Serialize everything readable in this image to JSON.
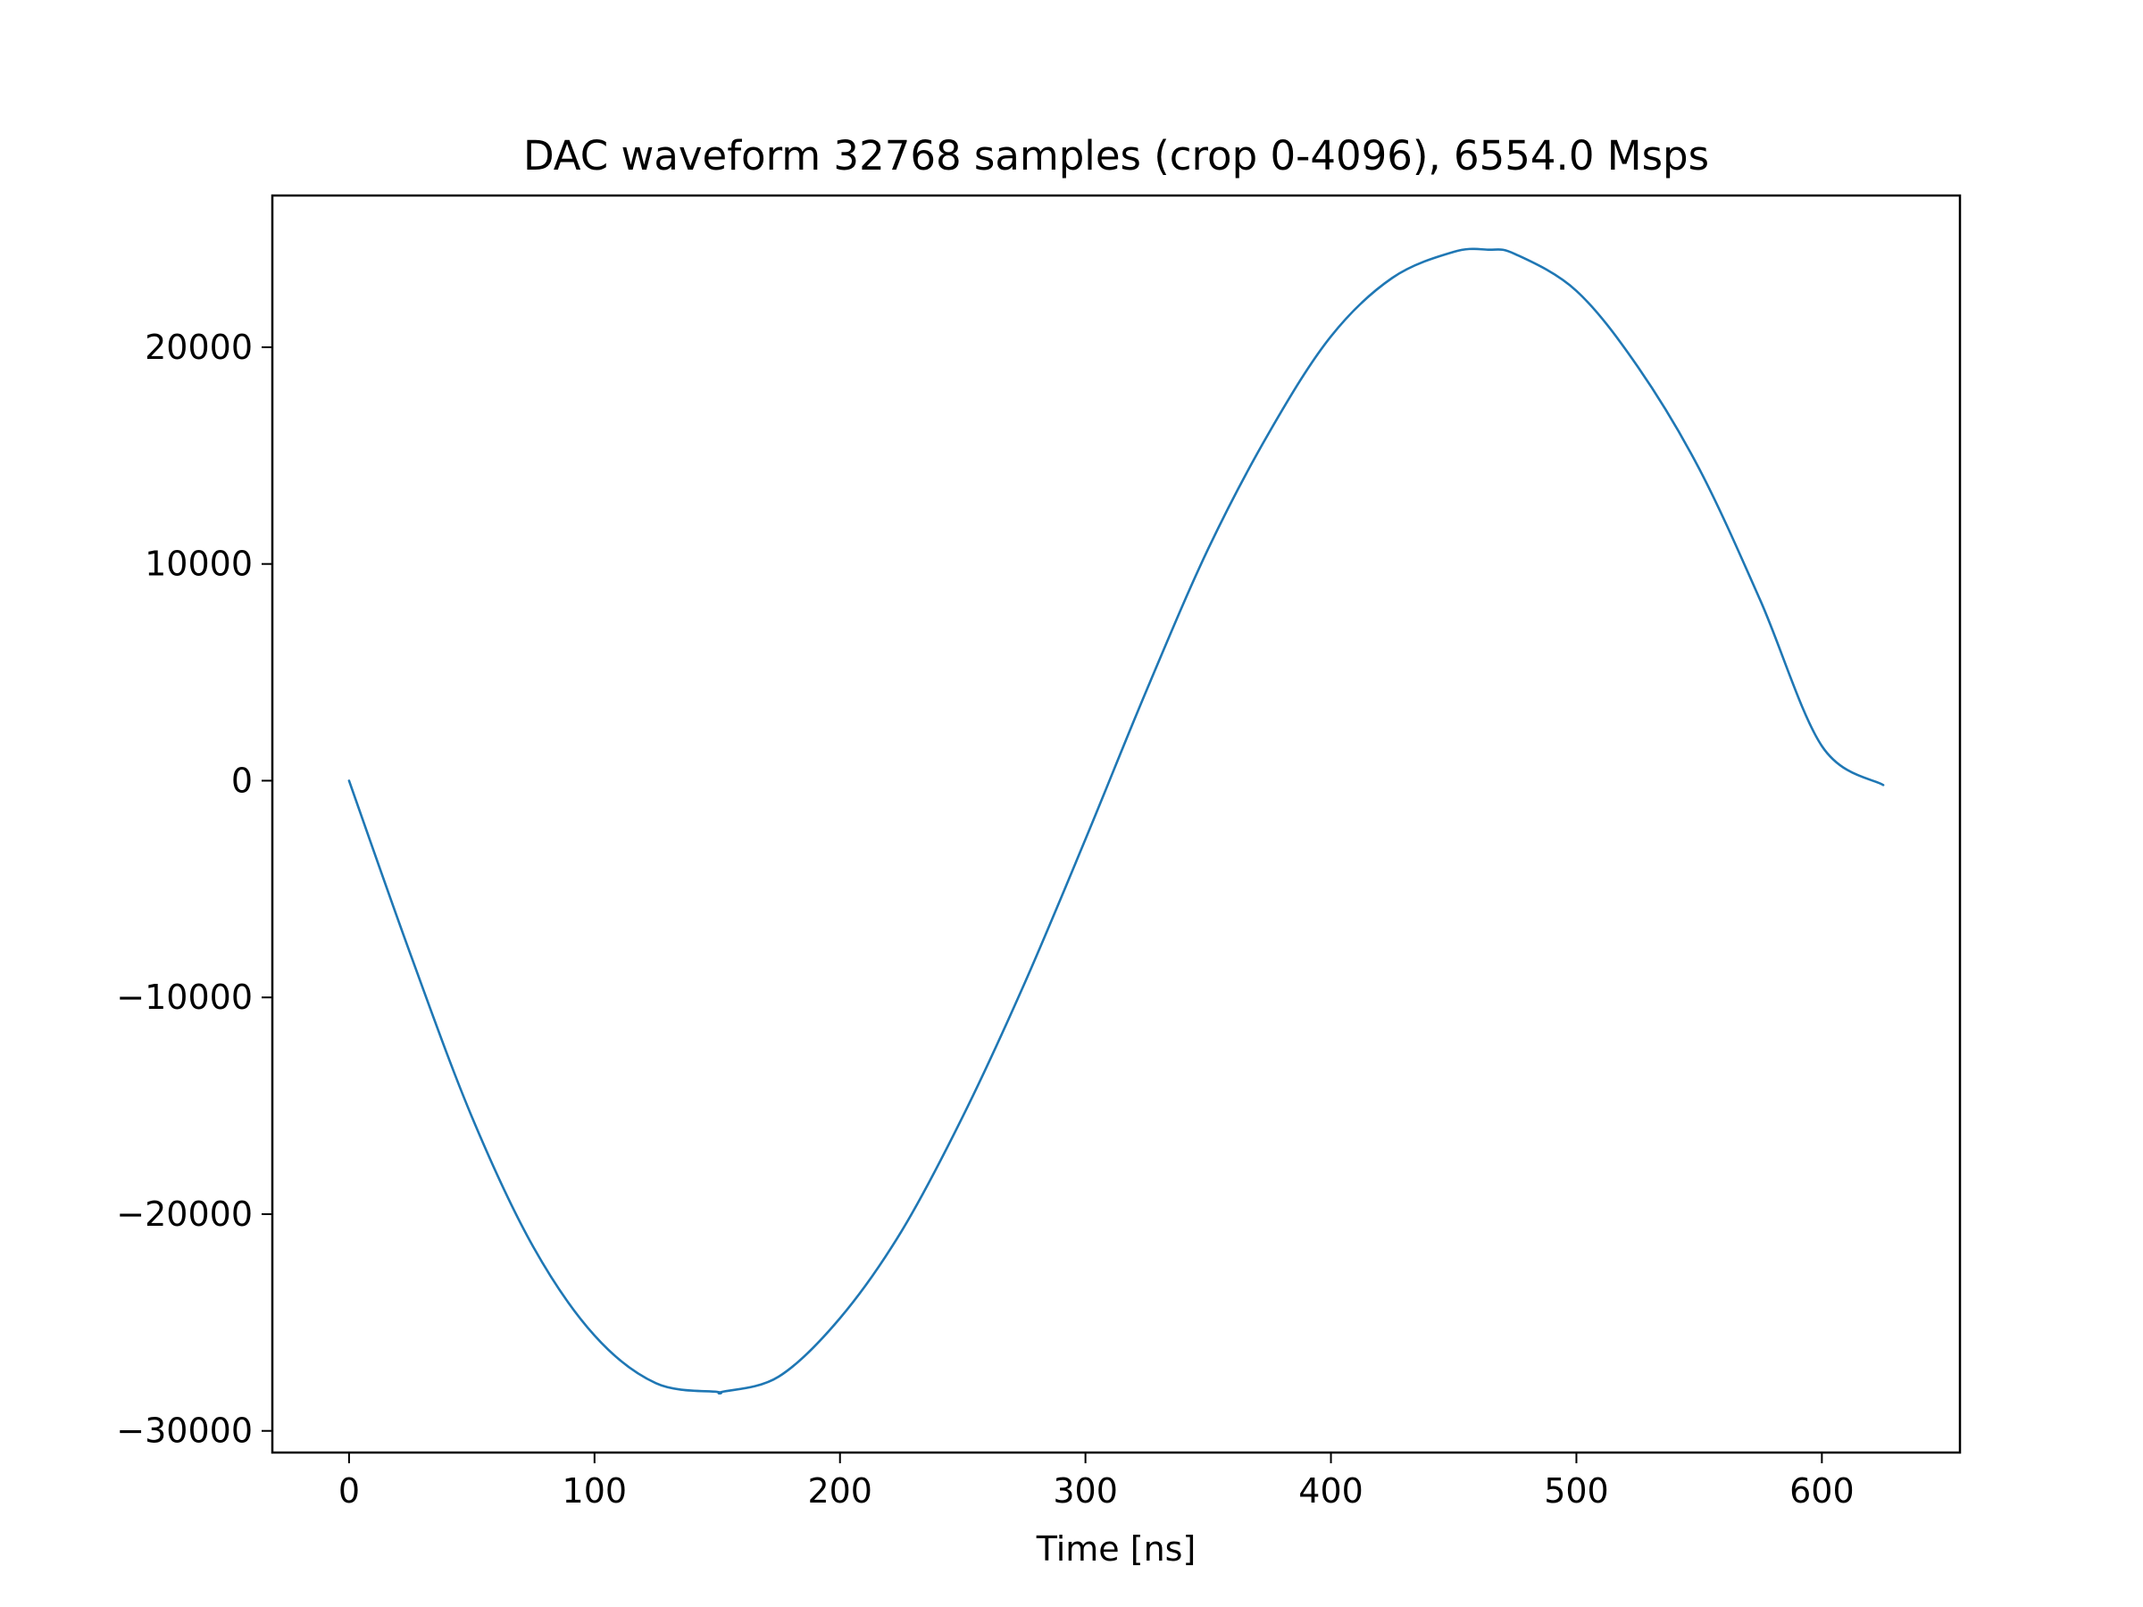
{
  "chart_data": {
    "type": "line",
    "title": "DAC waveform 32768 samples (crop 0-4096), 6554.0 Msps",
    "xlabel": "Time [ns]",
    "ylabel": "",
    "xlim": [
      -31.25,
      656.25
    ],
    "ylim": [
      -31000,
      27000
    ],
    "xticks": [
      0,
      100,
      200,
      300,
      400,
      500,
      600
    ],
    "yticks": [
      -30000,
      -20000,
      -10000,
      0,
      10000,
      20000
    ],
    "xtick_labels": [
      "0",
      "100",
      "200",
      "300",
      "400",
      "500",
      "600"
    ],
    "ytick_labels": [
      "−30000",
      "−20000",
      "−10000",
      "0",
      "10000",
      "20000"
    ],
    "grid": false,
    "series": [
      {
        "color": "#1f77b4",
        "x": [
          0,
          25,
          50,
          75,
          100,
          125,
          150,
          152,
          175,
          200,
          225,
          250,
          275,
          300,
          325,
          350,
          375,
          400,
          425,
          450,
          464,
          475,
          500,
          525,
          550,
          575,
          600,
          625
        ],
        "y": [
          0,
          -8000,
          -15500,
          -21500,
          -25600,
          -27800,
          -28200,
          -28200,
          -27500,
          -24800,
          -20800,
          -15500,
          -9400,
          -2700,
          4200,
          10700,
          16100,
          20500,
          23200,
          24400,
          24500,
          24300,
          22600,
          19100,
          14400,
          8300,
          1600,
          -200
        ]
      }
    ]
  }
}
